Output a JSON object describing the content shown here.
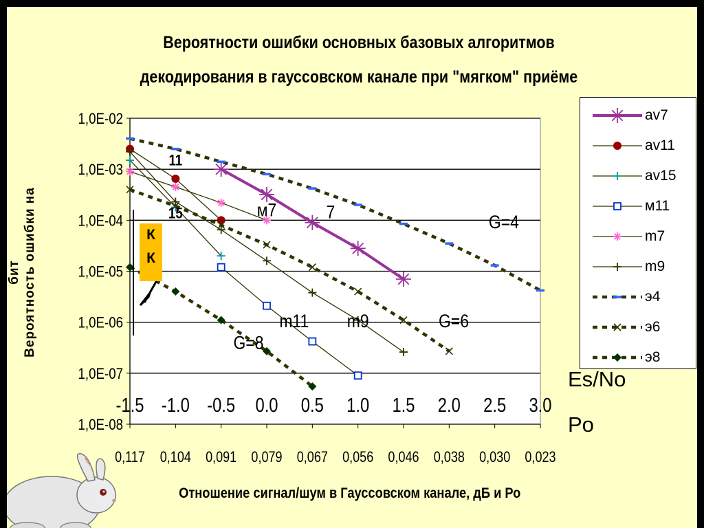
{
  "title": {
    "line1": "Вероятности ошибки  основных базовых алгоритмов",
    "line2": "декодирования   в гауссовском канале при \"мягком\" приёме"
  },
  "yaxis_label": {
    "line1": "Вероятность ошибки на",
    "line2": "бит"
  },
  "xaxis_label": "Отношение сигнал/шум в Гауссовском  канале, дБ  и Ро",
  "es_no_label": "Es/No",
  "po_label": "Po",
  "kk_box": {
    "line1": "К",
    "line2": "К"
  },
  "colors": {
    "av7": "#993399",
    "av11": "#990000",
    "av15": "#009999",
    "m11": "#0033cc",
    "m7": "#ff66cc",
    "m9": "#333300",
    "e4": "#333300",
    "e4_marker": "#3366ff",
    "e6": "#333300",
    "e8": "#333300",
    "e8_marker": "#003300"
  },
  "chart_data": {
    "type": "line",
    "title": "Вероятности ошибки  основных базовых алгоритмов декодирования   в гауссовском канале при \"мягком\" приёме",
    "xlabel": "Отношение сигнал/шум в Гауссовском  канале, дБ  и Ро",
    "ylabel": "Вероятность ошибки на бит",
    "yscale": "log",
    "ylim": [
      1e-08,
      0.01
    ],
    "yticks": [
      "1,0E-02",
      "1,0E-03",
      "1,0E-04",
      "1,0E-05",
      "1,0E-06",
      "1,0E-07",
      "1,0E-08"
    ],
    "x": [
      -1.5,
      -1.0,
      -0.5,
      0.0,
      0.5,
      1.0,
      1.5,
      2.0,
      2.5,
      3.0
    ],
    "x_es_no_ticks": [
      "-1.5",
      "-1.0",
      "-0.5",
      "0.0",
      "0.5",
      "1.0",
      "1.5",
      "2.0",
      "2.5",
      "3.0"
    ],
    "x_po_ticks": [
      "0,117",
      "0,104",
      "0,091",
      "0,079",
      "0,067",
      "0,056",
      "0,046",
      "0,038",
      "0,030",
      "0,023"
    ],
    "grid": "horizontal",
    "legend_position": "right",
    "series": [
      {
        "name": "av7",
        "marker": "asterisk",
        "line": "solid-thick",
        "points": [
          [
            -0.5,
            0.001
          ],
          [
            0.0,
            0.00032
          ],
          [
            0.5,
            9e-05
          ],
          [
            1.0,
            2.8e-05
          ],
          [
            1.5,
            7e-06
          ]
        ]
      },
      {
        "name": "av11",
        "marker": "dot",
        "line": "solid",
        "points": [
          [
            -1.5,
            0.0025
          ],
          [
            -1.0,
            0.00065
          ],
          [
            -0.5,
            0.0001
          ]
        ]
      },
      {
        "name": "av15",
        "marker": "plus",
        "line": "solid",
        "points": [
          [
            -1.5,
            0.0015
          ],
          [
            -1.0,
            0.00018
          ],
          [
            -0.5,
            2e-05
          ]
        ]
      },
      {
        "name": "м11",
        "marker": "square",
        "line": "solid",
        "points": [
          [
            -0.5,
            1.2e-05
          ],
          [
            0.0,
            2.1e-06
          ],
          [
            0.5,
            4.2e-07
          ],
          [
            1.0,
            9e-08
          ]
        ]
      },
      {
        "name": "m7",
        "marker": "asterisk",
        "line": "solid",
        "points": [
          [
            -1.5,
            0.0009
          ],
          [
            -1.0,
            0.00045
          ],
          [
            -0.5,
            0.00022
          ],
          [
            0.0,
            0.0001
          ]
        ]
      },
      {
        "name": "m9",
        "marker": "plus",
        "line": "solid",
        "points": [
          [
            -1.5,
            0.0022
          ],
          [
            -1.0,
            0.00023
          ],
          [
            -0.5,
            6.5e-05
          ],
          [
            0.0,
            1.6e-05
          ],
          [
            0.5,
            3.8e-06
          ],
          [
            1.0,
            1.1e-06
          ],
          [
            1.5,
            2.6e-07
          ]
        ]
      },
      {
        "name": "э4",
        "marker": "dash",
        "line": "dotted",
        "points": [
          [
            -1.5,
            0.004
          ],
          [
            -1.0,
            0.0025
          ],
          [
            -0.5,
            0.0014
          ],
          [
            0.0,
            0.0008
          ],
          [
            0.5,
            0.00042
          ],
          [
            1.0,
            0.0002
          ],
          [
            1.5,
            8.5e-05
          ],
          [
            2.0,
            3.5e-05
          ],
          [
            2.5,
            1.3e-05
          ],
          [
            3.0,
            4.2e-06
          ]
        ]
      },
      {
        "name": "э6",
        "marker": "cross",
        "line": "dotted",
        "points": [
          [
            -1.5,
            0.0004
          ],
          [
            -1.0,
            0.00019
          ],
          [
            -0.5,
            8e-05
          ],
          [
            0.0,
            3.3e-05
          ],
          [
            0.5,
            1.2e-05
          ],
          [
            1.0,
            4e-06
          ],
          [
            1.5,
            1.1e-06
          ],
          [
            2.0,
            2.7e-07
          ]
        ]
      },
      {
        "name": "э8",
        "marker": "diamond",
        "line": "dotted",
        "points": [
          [
            -1.5,
            1.2e-05
          ],
          [
            -1.0,
            4e-06
          ],
          [
            -0.5,
            1.1e-06
          ],
          [
            0.0,
            2.7e-07
          ],
          [
            0.5,
            5.5e-08
          ]
        ]
      }
    ],
    "annotations": [
      {
        "text": "11",
        "at": [
          -1.0,
          0.0012
        ]
      },
      {
        "text": "15",
        "at": [
          -1.0,
          0.00011
        ]
      },
      {
        "text": "м7",
        "at": [
          0.0,
          0.00012
        ]
      },
      {
        "text": "7",
        "at": [
          0.7,
          0.00011
        ]
      },
      {
        "text": "G=4",
        "at": [
          2.6,
          7e-05
        ]
      },
      {
        "text": "G=6",
        "at": [
          2.05,
          8e-07
        ]
      },
      {
        "text": "G=8",
        "at": [
          -0.2,
          3e-07
        ]
      },
      {
        "text": "m11",
        "at": [
          0.3,
          8e-07
        ]
      },
      {
        "text": "m9",
        "at": [
          1.0,
          8e-07
        ]
      }
    ]
  }
}
